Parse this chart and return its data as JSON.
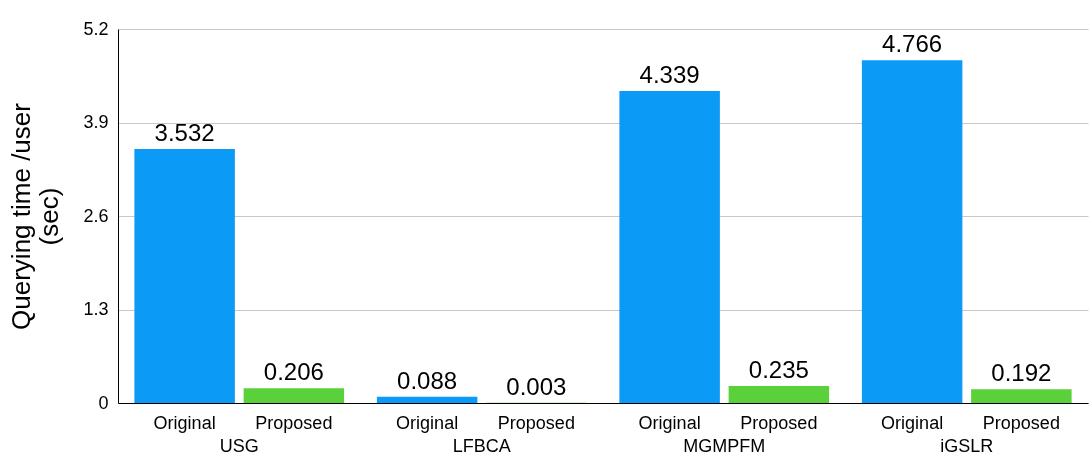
{
  "chart_data": {
    "type": "bar",
    "ylabel": "Querying time /user (sec)",
    "categories": [
      "USG",
      "LFBCA",
      "MGMPFM",
      "iGSLR"
    ],
    "series": [
      {
        "name": "Original",
        "color": "#0b9bf7",
        "values": [
          3.532,
          0.088,
          4.339,
          4.766
        ]
      },
      {
        "name": "Proposed",
        "color": "#5ad13b",
        "values": [
          0.206,
          0.003,
          0.235,
          0.192
        ]
      }
    ],
    "ylim": [
      0,
      5.2
    ],
    "yticks": [
      0,
      1.3,
      2.6,
      3.9,
      5.2
    ],
    "grid": "y",
    "data_labels": true,
    "legend": false
  }
}
